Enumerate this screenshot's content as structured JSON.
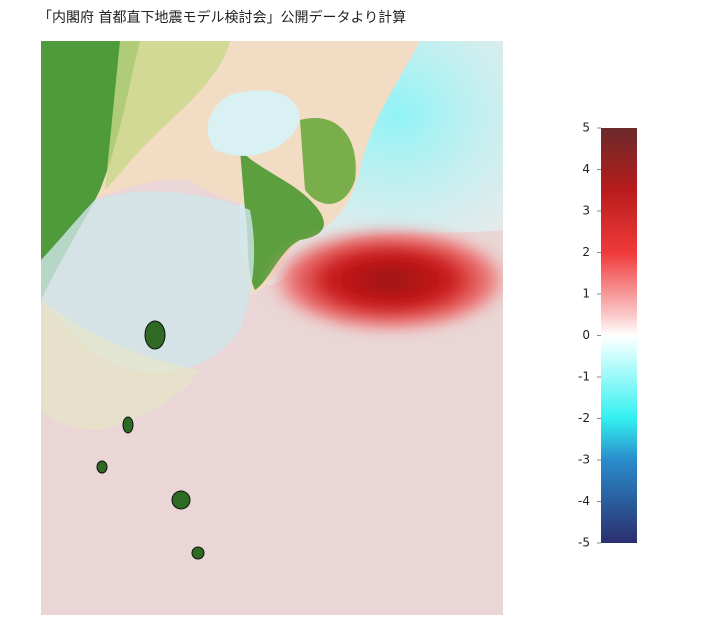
{
  "title": "「内閣府 首都直下地震モデル検討会」公開データより計算",
  "colorbar": {
    "lim": [
      -5,
      5
    ],
    "ticks": [
      5,
      4,
      3,
      2,
      1,
      0,
      -1,
      -2,
      -3,
      -4,
      -5
    ]
  }
}
